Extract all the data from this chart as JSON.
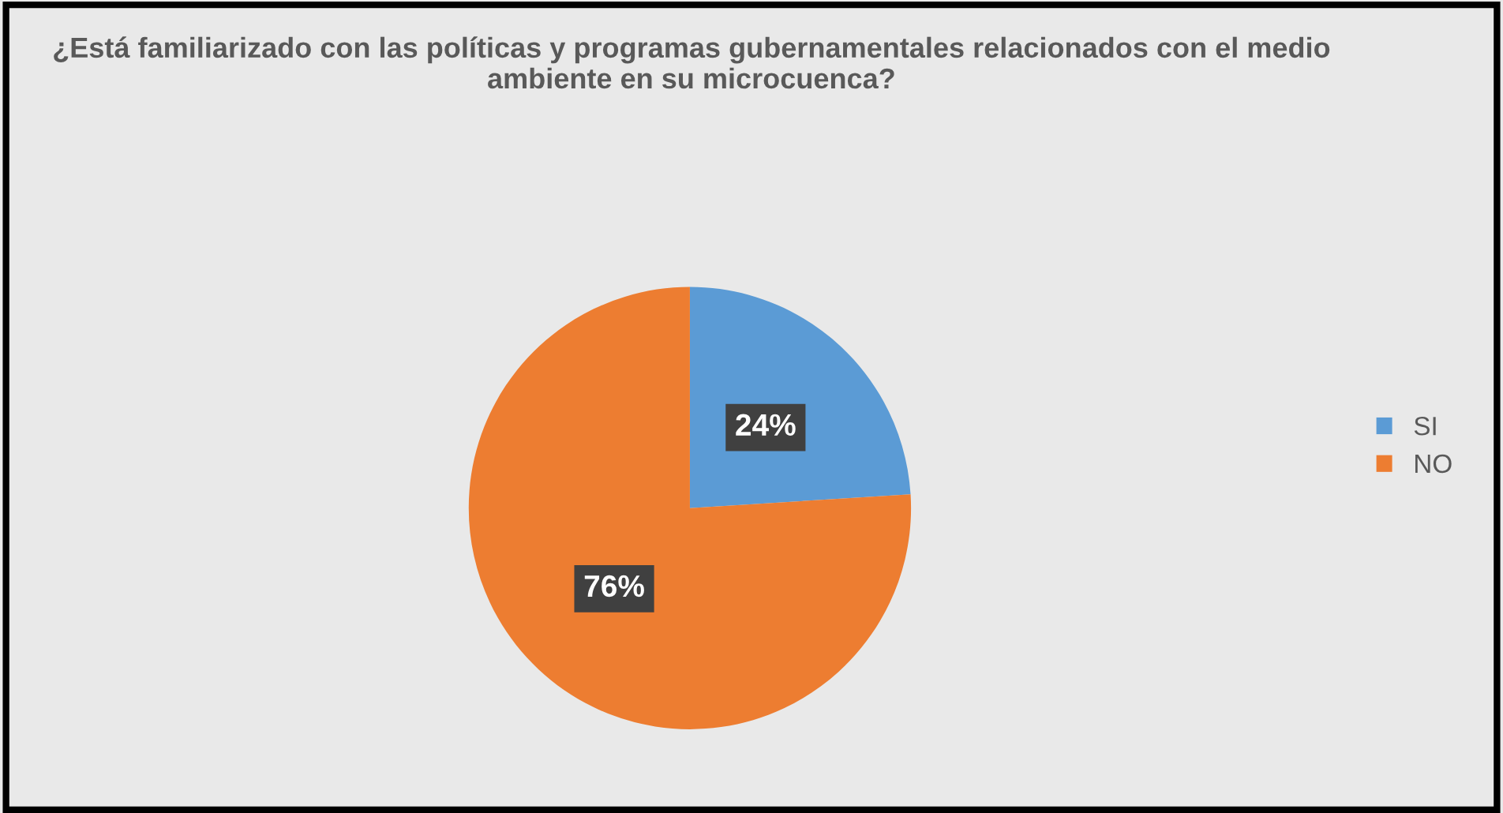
{
  "chart_data": {
    "type": "pie",
    "title": "¿Está familiarizado con las políticas y programas gubernamentales relacionados con el medio ambiente en su microcuenca?",
    "categories": [
      "SI",
      "NO"
    ],
    "values": [
      24,
      76
    ],
    "colors": [
      "#5b9bd5",
      "#ed7d31"
    ],
    "value_labels": [
      "24%",
      "76%"
    ],
    "legend": "right"
  }
}
